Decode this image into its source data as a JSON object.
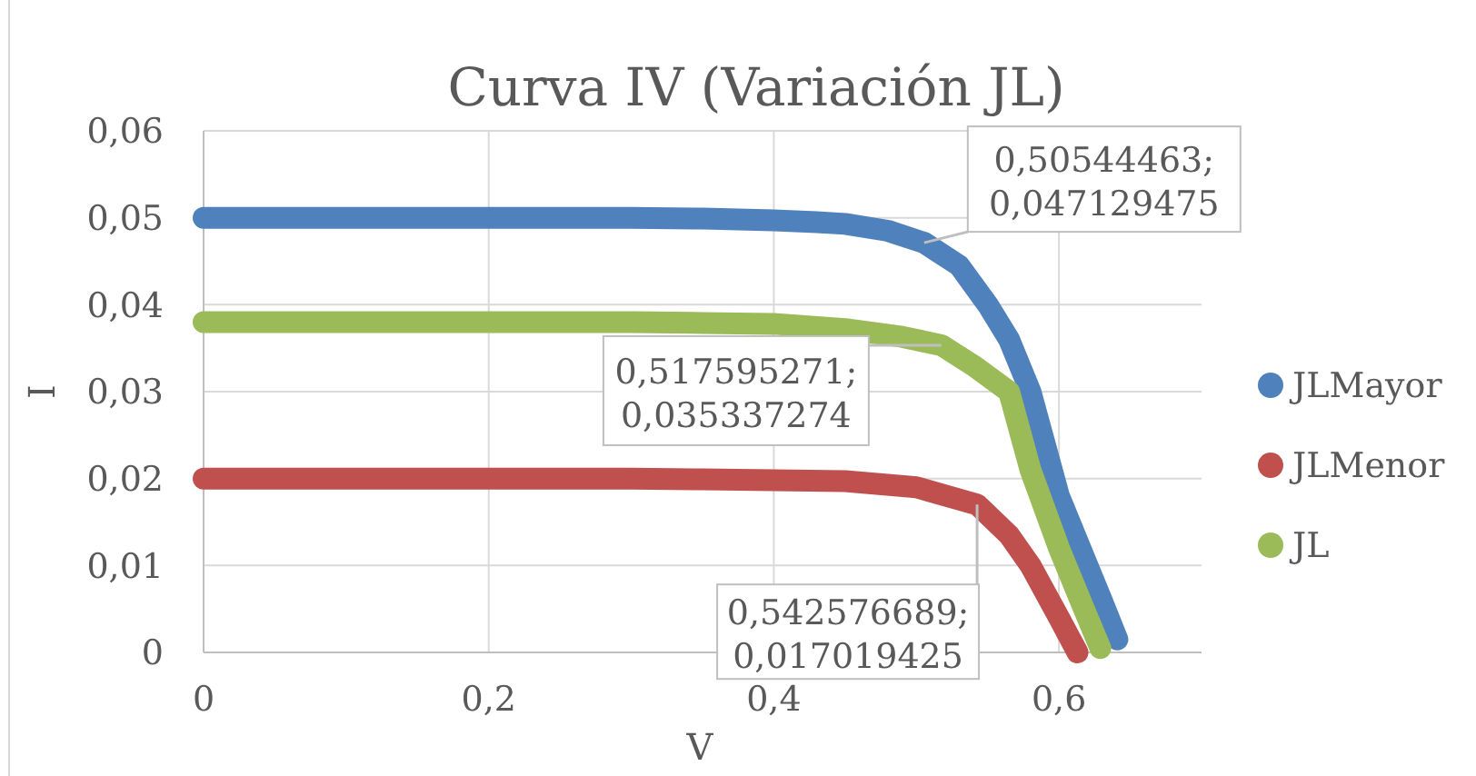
{
  "chart_data": {
    "type": "line",
    "title": "Curva IV (Variación JL)",
    "xlabel": "V",
    "ylabel": "I",
    "xlim": [
      0,
      0.7
    ],
    "ylim": [
      0,
      0.06
    ],
    "xticks": [
      0,
      {
        "value": 0.2,
        "label": "0,2"
      },
      {
        "value": 0.4,
        "label": "0,4"
      },
      {
        "value": 0.6,
        "label": "0,6"
      }
    ],
    "yticks": [
      0,
      {
        "value": 0.01,
        "label": "0,01"
      },
      {
        "value": 0.02,
        "label": "0,02"
      },
      {
        "value": 0.03,
        "label": "0,03"
      },
      {
        "value": 0.04,
        "label": "0,04"
      },
      {
        "value": 0.05,
        "label": "0,05"
      },
      {
        "value": 0.06,
        "label": "0,06"
      }
    ],
    "grid": true,
    "legend": "right",
    "line_style": "solid",
    "series": [
      {
        "name": "JLMayor",
        "color": "#4f81bd",
        "x": [
          0,
          0.1,
          0.2,
          0.3,
          0.35,
          0.4,
          0.43,
          0.45,
          0.48,
          0.50544463,
          0.53,
          0.55,
          0.565,
          0.58,
          0.6,
          0.615,
          0.63,
          0.641
        ],
        "values": [
          0.05,
          0.05,
          0.05,
          0.05,
          0.0499,
          0.0497,
          0.0495,
          0.0493,
          0.0485,
          0.047129475,
          0.0445,
          0.04,
          0.036,
          0.03,
          0.018,
          0.012,
          0.006,
          0.0015
        ]
      },
      {
        "name": "JLMenor",
        "color": "#c0504d",
        "x": [
          0,
          0.1,
          0.2,
          0.3,
          0.35,
          0.4,
          0.45,
          0.5,
          0.542576689,
          0.565,
          0.58,
          0.6,
          0.613
        ],
        "values": [
          0.02,
          0.02,
          0.02,
          0.02,
          0.0199,
          0.0198,
          0.0197,
          0.019,
          0.017019425,
          0.0135,
          0.01,
          0.004,
          0
        ]
      },
      {
        "name": "JL",
        "color": "#9bbb59",
        "x": [
          0,
          0.1,
          0.2,
          0.3,
          0.35,
          0.4,
          0.45,
          0.49,
          0.517595271,
          0.54,
          0.565,
          0.58,
          0.6,
          0.615,
          0.629
        ],
        "values": [
          0.038,
          0.038,
          0.038,
          0.038,
          0.0379,
          0.0378,
          0.0372,
          0.0363,
          0.035337274,
          0.033,
          0.03,
          0.021,
          0.012,
          0.006,
          0.0005
        ]
      }
    ],
    "annotations": [
      {
        "text": "0,50544463; 0,047129475",
        "x": 0.50544463,
        "y": 0.047129475
      },
      {
        "text": "0,517595271; 0,035337274",
        "x": 0.517595271,
        "y": 0.035337274
      },
      {
        "text": "0,542576689; 0,017019425",
        "x": 0.542576689,
        "y": 0.017019425
      }
    ]
  }
}
